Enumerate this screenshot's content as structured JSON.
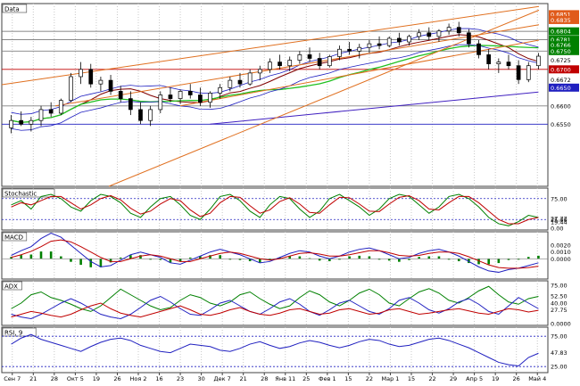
{
  "chart_data": {
    "type": "multi-panel-price-chart",
    "dates_axis": [
      "Сен 7",
      "21",
      "28",
      "Окт 5",
      "19",
      "26",
      "Ноя 2",
      "16",
      "23",
      "30",
      "Дек 7",
      "21",
      "28",
      "Янв 11",
      "25",
      "Фев 1",
      "15",
      "22",
      "Мар 1",
      "15",
      "22",
      "29",
      "Апр 5",
      "19",
      "26",
      "Май 4"
    ],
    "panels": [
      {
        "id": "price",
        "title": "Data",
        "type": "candlestick",
        "ylim": [
          0.638,
          0.688
        ],
        "axis_labels": [
          "0.6851",
          "0.6835",
          "0.6804",
          "0.6781",
          "0.6766",
          "0.6750",
          "0.6725",
          "0.6700",
          "0.6672",
          "0.6650",
          "0.6600",
          "0.6550"
        ],
        "label_colors": {
          "0.6851": "#e05a1a",
          "0.6835": "#e05a1a",
          "0.6804": "#008000",
          "0.6781": "#008000",
          "0.6766": "#008000",
          "0.6750": "#008000",
          "0.6725": "#ffffff",
          "0.6700": "#c00000",
          "0.6650": "#2020c0"
        },
        "candles": [
          [
            0.654,
            0.6575,
            0.6525,
            0.656
          ],
          [
            0.656,
            0.6585,
            0.6545,
            0.655
          ],
          [
            0.655,
            0.657,
            0.653,
            0.656
          ],
          [
            0.656,
            0.66,
            0.6545,
            0.659
          ],
          [
            0.659,
            0.661,
            0.657,
            0.658
          ],
          [
            0.658,
            0.662,
            0.6575,
            0.6615
          ],
          [
            0.6615,
            0.669,
            0.661,
            0.668
          ],
          [
            0.668,
            0.672,
            0.666,
            0.67
          ],
          [
            0.67,
            0.6715,
            0.665,
            0.666
          ],
          [
            0.666,
            0.668,
            0.664,
            0.667
          ],
          [
            0.667,
            0.6685,
            0.663,
            0.664
          ],
          [
            0.664,
            0.6655,
            0.661,
            0.662
          ],
          [
            0.662,
            0.664,
            0.6575,
            0.659
          ],
          [
            0.659,
            0.661,
            0.655,
            0.656
          ],
          [
            0.656,
            0.66,
            0.6545,
            0.659
          ],
          [
            0.659,
            0.664,
            0.658,
            0.663
          ],
          [
            0.663,
            0.665,
            0.661,
            0.662
          ],
          [
            0.662,
            0.6645,
            0.6605,
            0.664
          ],
          [
            0.664,
            0.666,
            0.662,
            0.663
          ],
          [
            0.663,
            0.665,
            0.66,
            0.661
          ],
          [
            0.661,
            0.664,
            0.6595,
            0.6635
          ],
          [
            0.6635,
            0.666,
            0.662,
            0.665
          ],
          [
            0.665,
            0.668,
            0.664,
            0.667
          ],
          [
            0.667,
            0.669,
            0.665,
            0.666
          ],
          [
            0.666,
            0.67,
            0.6655,
            0.669
          ],
          [
            0.669,
            0.671,
            0.667,
            0.67
          ],
          [
            0.67,
            0.673,
            0.669,
            0.672
          ],
          [
            0.672,
            0.674,
            0.67,
            0.671
          ],
          [
            0.671,
            0.6735,
            0.6695,
            0.6725
          ],
          [
            0.6725,
            0.675,
            0.6715,
            0.674
          ],
          [
            0.674,
            0.676,
            0.672,
            0.673
          ],
          [
            0.673,
            0.6745,
            0.67,
            0.671
          ],
          [
            0.671,
            0.674,
            0.6705,
            0.6735
          ],
          [
            0.6735,
            0.6765,
            0.6725,
            0.6755
          ],
          [
            0.6755,
            0.6775,
            0.674,
            0.675
          ],
          [
            0.675,
            0.677,
            0.673,
            0.676
          ],
          [
            0.676,
            0.678,
            0.6745,
            0.677
          ],
          [
            0.677,
            0.679,
            0.6755,
            0.6765
          ],
          [
            0.6765,
            0.679,
            0.676,
            0.6785
          ],
          [
            0.6785,
            0.68,
            0.6765,
            0.6775
          ],
          [
            0.6775,
            0.6795,
            0.6765,
            0.679
          ],
          [
            0.679,
            0.681,
            0.678,
            0.68
          ],
          [
            0.68,
            0.6815,
            0.678,
            0.679
          ],
          [
            0.679,
            0.681,
            0.6775,
            0.6805
          ],
          [
            0.6805,
            0.6825,
            0.6795,
            0.6815
          ],
          [
            0.6815,
            0.683,
            0.679,
            0.68
          ],
          [
            0.68,
            0.681,
            0.676,
            0.677
          ],
          [
            0.677,
            0.678,
            0.673,
            0.674
          ],
          [
            0.674,
            0.6755,
            0.67,
            0.6715
          ],
          [
            0.6715,
            0.673,
            0.669,
            0.672
          ],
          [
            0.672,
            0.674,
            0.67,
            0.671
          ],
          [
            0.671,
            0.6725,
            0.666,
            0.6672
          ],
          [
            0.6672,
            0.672,
            0.6665,
            0.671
          ],
          [
            0.671,
            0.6745,
            0.67,
            0.6736
          ]
        ],
        "hlines": [
          {
            "value": 0.6804,
            "color": "#606060"
          },
          {
            "value": 0.6781,
            "color": "#606060"
          },
          {
            "value": 0.675,
            "color": "#808080"
          },
          {
            "value": 0.67,
            "color": "#c00000"
          },
          {
            "value": 0.66,
            "color": "#808080"
          },
          {
            "value": 0.655,
            "color": "#2020c0"
          }
        ]
      },
      {
        "id": "stochastic",
        "title": "Stochastic",
        "ylim": [
          0,
          100
        ],
        "axis_labels": [
          "75.00",
          "19.44",
          "27.77",
          "25.00",
          "0.00"
        ],
        "levels": [
          75,
          25
        ],
        "series": [
          {
            "color": "#008000",
            "values": [
              60,
              70,
              50,
              80,
              85,
              75,
              55,
              45,
              70,
              85,
              80,
              65,
              40,
              30,
              55,
              75,
              80,
              60,
              35,
              25,
              50,
              80,
              85,
              70,
              45,
              30,
              60,
              80,
              75,
              50,
              30,
              45,
              75,
              85,
              70,
              55,
              35,
              50,
              75,
              85,
              80,
              60,
              40,
              55,
              80,
              85,
              75,
              55,
              30,
              15,
              10,
              20,
              35,
              30
            ]
          },
          {
            "color": "#c00000",
            "values": [
              55,
              65,
              60,
              70,
              80,
              80,
              65,
              50,
              60,
              75,
              82,
              72,
              52,
              38,
              45,
              62,
              75,
              70,
              48,
              32,
              40,
              65,
              80,
              78,
              58,
              40,
              48,
              68,
              77,
              62,
              42,
              40,
              60,
              78,
              77,
              62,
              45,
              44,
              62,
              78,
              82,
              70,
              50,
              48,
              65,
              80,
              80,
              65,
              45,
              25,
              15,
              15,
              25,
              30
            ]
          }
        ]
      },
      {
        "id": "macd",
        "title": "MACD",
        "ylim": [
          -0.003,
          0.004
        ],
        "axis_labels": [
          "0.0020",
          "0.0010",
          "0.0000"
        ],
        "series": [
          {
            "color": "#2020c0",
            "values": [
              0.0005,
              0.0012,
              0.0018,
              0.003,
              0.0038,
              0.0032,
              0.002,
              0.0008,
              -0.0004,
              -0.0012,
              -0.001,
              -0.0002,
              0.0006,
              0.001,
              0.0006,
              0.0002,
              -0.0006,
              -0.0008,
              -0.0002,
              0.0004,
              0.001,
              0.0014,
              0.001,
              0.0006,
              0.0,
              -0.0006,
              -0.0004,
              0.0002,
              0.0008,
              0.0012,
              0.001,
              0.0004,
              0.0,
              0.0004,
              0.001,
              0.0014,
              0.0016,
              0.0012,
              0.0006,
              0.0,
              0.0002,
              0.0008,
              0.0012,
              0.0014,
              0.001,
              0.0004,
              -0.0004,
              -0.0012,
              -0.0018,
              -0.002,
              -0.0016,
              -0.0014,
              -0.001,
              -0.0006
            ]
          },
          {
            "color": "#c00000",
            "values": [
              0.0002,
              0.0006,
              0.0011,
              0.0018,
              0.0026,
              0.0028,
              0.0025,
              0.0018,
              0.001,
              0.0002,
              -0.0004,
              -0.0004,
              0.0,
              0.0004,
              0.0006,
              0.0004,
              0.0,
              -0.0004,
              -0.0004,
              0.0,
              0.0004,
              0.0008,
              0.001,
              0.0008,
              0.0004,
              0.0,
              -0.0002,
              0.0,
              0.0004,
              0.0008,
              0.0009,
              0.0007,
              0.0004,
              0.0004,
              0.0006,
              0.0009,
              0.0012,
              0.0012,
              0.0009,
              0.0005,
              0.0004,
              0.0005,
              0.0008,
              0.001,
              0.001,
              0.0008,
              0.0003,
              -0.0003,
              -0.0009,
              -0.0013,
              -0.0014,
              -0.0014,
              -0.0013,
              -0.0011
            ]
          }
        ]
      },
      {
        "id": "adx",
        "title": "ADX",
        "ylim": [
          0,
          80
        ],
        "axis_labels": [
          "75.00",
          "52.50",
          "40.00",
          "27.75",
          "0.0000"
        ],
        "series": [
          {
            "color": "#008000",
            "values": [
              30,
              40,
              55,
              60,
              50,
              45,
              38,
              30,
              25,
              35,
              50,
              65,
              55,
              45,
              35,
              28,
              32,
              45,
              55,
              50,
              40,
              35,
              42,
              55,
              60,
              48,
              38,
              30,
              35,
              50,
              62,
              55,
              42,
              35,
              45,
              58,
              65,
              55,
              40,
              35,
              48,
              60,
              66,
              58,
              45,
              40,
              50,
              62,
              70,
              55,
              42,
              38,
              48,
              52
            ]
          },
          {
            "color": "#2020c0",
            "values": [
              20,
              15,
              12,
              20,
              30,
              40,
              48,
              40,
              30,
              20,
              15,
              12,
              20,
              32,
              45,
              52,
              42,
              30,
              20,
              18,
              28,
              40,
              45,
              35,
              25,
              20,
              30,
              42,
              48,
              38,
              25,
              18,
              28,
              40,
              45,
              35,
              25,
              20,
              30,
              45,
              50,
              40,
              28,
              22,
              30,
              42,
              48,
              38,
              25,
              20,
              35,
              50,
              40,
              30
            ]
          },
          {
            "color": "#c00000",
            "values": [
              15,
              20,
              25,
              22,
              18,
              15,
              20,
              28,
              35,
              40,
              30,
              22,
              18,
              15,
              20,
              25,
              30,
              35,
              28,
              20,
              18,
              22,
              28,
              32,
              25,
              20,
              18,
              22,
              28,
              30,
              25,
              20,
              22,
              28,
              30,
              25,
              20,
              22,
              28,
              30,
              25,
              20,
              22,
              25,
              28,
              30,
              26,
              22,
              20,
              25,
              30,
              28,
              24,
              27
            ]
          }
        ]
      },
      {
        "id": "rsi",
        "title": "RSI, 9",
        "ylim": [
          15,
          90
        ],
        "axis_labels": [
          "75.00",
          "47.83",
          "25.00"
        ],
        "levels": [
          75,
          25
        ],
        "series": [
          {
            "color": "#2020c0",
            "values": [
              62,
              72,
              78,
              70,
              65,
              60,
              55,
              50,
              58,
              65,
              70,
              72,
              68,
              60,
              55,
              50,
              48,
              55,
              62,
              60,
              58,
              52,
              50,
              55,
              62,
              66,
              60,
              55,
              58,
              64,
              68,
              65,
              60,
              56,
              60,
              66,
              70,
              68,
              62,
              58,
              60,
              65,
              70,
              72,
              68,
              62,
              56,
              48,
              40,
              32,
              28,
              26,
              40,
              47
            ]
          }
        ]
      }
    ]
  }
}
